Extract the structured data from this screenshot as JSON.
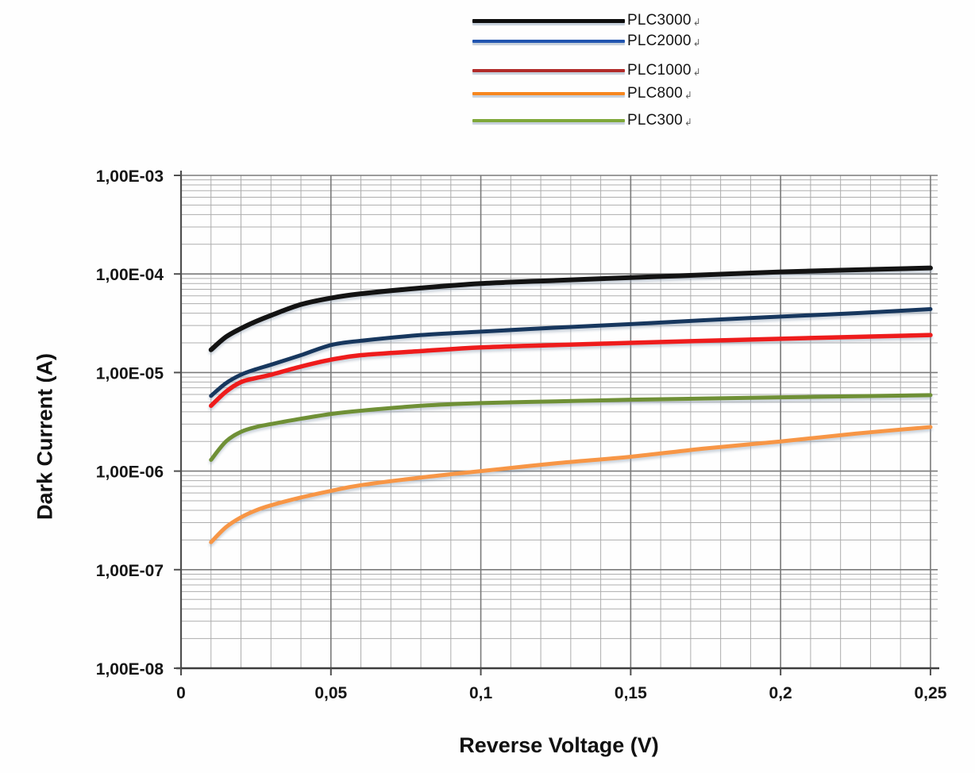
{
  "figure": {
    "background": "#ffffff"
  },
  "legend": {
    "trailing_mark": "↲"
  },
  "chart_data": {
    "type": "line",
    "title": "",
    "xlabel": "Reverse Voltage (V)",
    "ylabel": "Dark Current (A)",
    "x_scale": "linear",
    "y_scale": "log",
    "xlim": [
      0,
      0.2524
    ],
    "ylim": [
      1e-08,
      0.001
    ],
    "grid": {
      "x_minor_step": 0.01,
      "x_major_step": 0.05,
      "y_major": "decades",
      "y_minor": "mantissas 2-9",
      "minor_color": "#adadad",
      "major_color": "#7a7a7a"
    },
    "axis_color": "#3d3d3d",
    "legend_position": "top-center",
    "xticks": [
      {
        "v": 0,
        "label": "0"
      },
      {
        "v": 0.05,
        "label": "0,05"
      },
      {
        "v": 0.1,
        "label": "0,1"
      },
      {
        "v": 0.15,
        "label": "0,15"
      },
      {
        "v": 0.2,
        "label": "0,2"
      },
      {
        "v": 0.25,
        "label": "0,25"
      }
    ],
    "yticks": [
      {
        "v": 0.001,
        "label": "1,00E-03"
      },
      {
        "v": 0.0001,
        "label": "1,00E-04"
      },
      {
        "v": 1e-05,
        "label": "1,00E-05"
      },
      {
        "v": 1e-06,
        "label": "1,00E-06"
      },
      {
        "v": 1e-07,
        "label": "1,00E-07"
      },
      {
        "v": 1e-08,
        "label": "1,00E-08"
      }
    ],
    "x": [
      0.01,
      0.015,
      0.02,
      0.025,
      0.03,
      0.04,
      0.05,
      0.06,
      0.08,
      0.1,
      0.125,
      0.15,
      0.175,
      0.2,
      0.225,
      0.25
    ],
    "series": [
      {
        "name": "PLC3000",
        "line_color": "#131313",
        "legend_color": "#0d0d0d",
        "line_width": 6,
        "values": [
          1.7e-05,
          2.3e-05,
          2.8e-05,
          3.3e-05,
          3.8e-05,
          4.9e-05,
          5.7e-05,
          6.3e-05,
          7.2e-05,
          8e-05,
          8.6e-05,
          9.2e-05,
          9.8e-05,
          0.000105,
          0.00011,
          0.000115
        ]
      },
      {
        "name": "PLC2000",
        "line_color": "#17375e",
        "legend_color": "#2255b0",
        "line_width": 5,
        "values": [
          5.8e-06,
          7.8e-06,
          9.5e-06,
          1.08e-05,
          1.2e-05,
          1.5e-05,
          1.9e-05,
          2.1e-05,
          2.4e-05,
          2.6e-05,
          2.85e-05,
          3.1e-05,
          3.4e-05,
          3.7e-05,
          4e-05,
          4.4e-05
        ]
      },
      {
        "name": "PLC1000",
        "line_color": "#ee1c1c",
        "legend_color": "#b12b2a",
        "line_width": 5.5,
        "values": [
          4.6e-06,
          6.4e-06,
          8e-06,
          8.8e-06,
          9.5e-06,
          1.15e-05,
          1.35e-05,
          1.5e-05,
          1.65e-05,
          1.8e-05,
          1.9e-05,
          2e-05,
          2.1e-05,
          2.2e-05,
          2.3e-05,
          2.4e-05
        ]
      },
      {
        "name": "PLC800",
        "line_color": "#f79646",
        "legend_color": "#f6861f",
        "line_width": 5,
        "values": [
          1.9e-07,
          2.7e-07,
          3.4e-07,
          4e-07,
          4.5e-07,
          5.4e-07,
          6.3e-07,
          7.2e-07,
          8.6e-07,
          1e-06,
          1.2e-06,
          1.4e-06,
          1.7e-06,
          2e-06,
          2.4e-06,
          2.8e-06
        ]
      },
      {
        "name": "PLC300",
        "line_color": "#6f9036",
        "legend_color": "#7fa83a",
        "line_width": 5,
        "values": [
          1.3e-06,
          2e-06,
          2.5e-06,
          2.8e-06,
          3e-06,
          3.4e-06,
          3.8e-06,
          4.1e-06,
          4.6e-06,
          4.9e-06,
          5.1e-06,
          5.3e-06,
          5.45e-06,
          5.6e-06,
          5.75e-06,
          5.9e-06
        ]
      }
    ]
  }
}
